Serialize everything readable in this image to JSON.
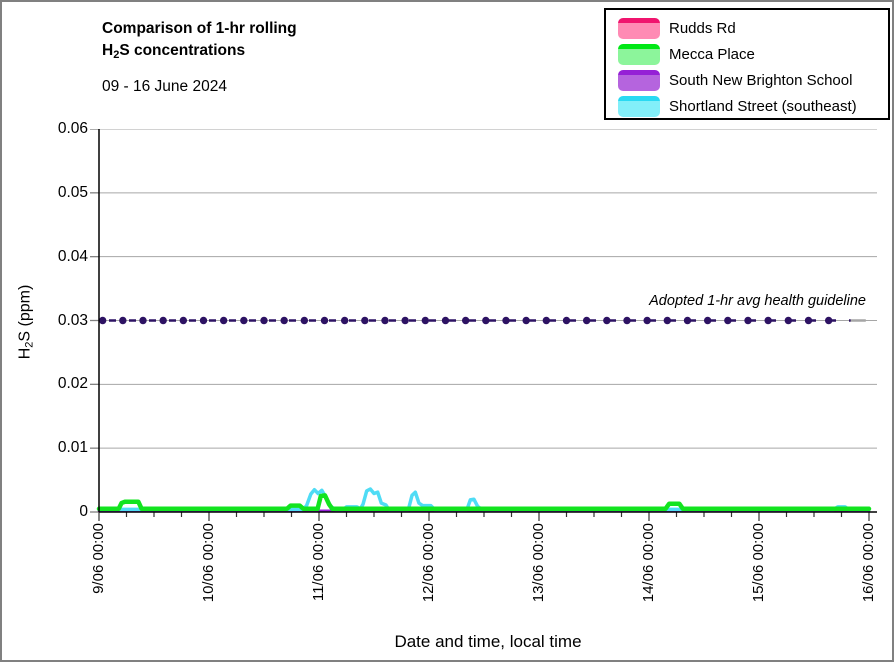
{
  "header": {
    "title_line1": "Comparison of 1-hr rolling",
    "title_h": "H",
    "title_sub": "2",
    "title_rest": "S concentrations",
    "subtitle": "09 - 16 June 2024"
  },
  "yaxis": {
    "h": "H",
    "sub": "2",
    "rest": "S (ppm)"
  },
  "legend": {
    "items": [
      {
        "label": "Rudds Rd",
        "line_color": "#F0146E",
        "fill_color": "#FF8AB4"
      },
      {
        "label": "Mecca Place",
        "line_color": "#00E816",
        "fill_color": "#8CF59B"
      },
      {
        "label": "South New Brighton School",
        "line_color": "#9520D6",
        "fill_color": "#B564DE"
      },
      {
        "label": "Shortland Street (southeast)",
        "line_color": "#29D9F2",
        "fill_color": "#82EFF9"
      }
    ]
  },
  "chart_data": {
    "type": "line",
    "title": "Comparison of 1-hr rolling H2S concentrations",
    "date_range": "09 - 16 June 2024",
    "xlabel": "Date and time, local time",
    "ylabel": "H2S (ppm)",
    "ylim": [
      0,
      0.06
    ],
    "yticks": [
      0,
      0.01,
      0.02,
      0.03,
      0.04,
      0.05,
      0.06
    ],
    "ytick_labels": [
      "0",
      "0.01",
      "0.02",
      "0.03",
      "0.04",
      "0.05",
      "0.06"
    ],
    "x_hours_range": [
      0,
      168
    ],
    "xtick_major_hours": [
      0,
      24,
      48,
      72,
      96,
      120,
      144,
      168
    ],
    "xtick_labels": [
      "9/06 00:00",
      "10/06 00:00",
      "11/06 00:00",
      "12/06 00:00",
      "13/06 00:00",
      "14/06 00:00",
      "15/06 00:00",
      "16/06 00:00"
    ],
    "xtick_minor_step_hours": 6,
    "grid_on": true,
    "grid_color": "#A6A6A6",
    "legend_position": "top-right",
    "guideline": {
      "label": "Adopted 1-hr avg health guideline",
      "value": 0.03,
      "color": "#2D1263",
      "tail_color": "#A6A6A6",
      "dash_end_hours": 164,
      "tail_end_hours": 167.3,
      "dot_start_hours": 0.8,
      "dot_step_hours": 4.4
    },
    "series": [
      {
        "name": "Rudds Rd",
        "color": "#F0146E",
        "width": 2.5,
        "points": [
          [
            0,
            0.0002
          ],
          [
            168,
            0.0002
          ]
        ]
      },
      {
        "name": "South New Brighton School",
        "color": "#9520D6",
        "width": 2.5,
        "points": [
          [
            0,
            0.0002
          ],
          [
            168,
            0.0002
          ]
        ]
      },
      {
        "name": "Shortland Street (southeast)",
        "color": "#4FDCF5",
        "width": 3.5,
        "points": [
          [
            0,
            0.0004
          ],
          [
            44.5,
            0.0004
          ],
          [
            45.3,
            0.001
          ],
          [
            46.2,
            0.0028
          ],
          [
            47,
            0.0035
          ],
          [
            47.8,
            0.0029
          ],
          [
            48.6,
            0.0034
          ],
          [
            49.6,
            0.0022
          ],
          [
            50.6,
            0.0009
          ],
          [
            51.5,
            0.0004
          ],
          [
            53.3,
            0.0004
          ],
          [
            54,
            0.0008
          ],
          [
            56.3,
            0.0008
          ],
          [
            57,
            0.0005
          ],
          [
            57.6,
            0.0012
          ],
          [
            58.4,
            0.0033
          ],
          [
            59.2,
            0.0036
          ],
          [
            60,
            0.0029
          ],
          [
            60.8,
            0.0031
          ],
          [
            61.6,
            0.0014
          ],
          [
            62.6,
            0.0011
          ],
          [
            63.2,
            0.0004
          ],
          [
            67.5,
            0.0004
          ],
          [
            68.3,
            0.0026
          ],
          [
            69,
            0.0031
          ],
          [
            69.8,
            0.0014
          ],
          [
            70.6,
            0.001
          ],
          [
            72.4,
            0.001
          ],
          [
            73.2,
            0.0004
          ],
          [
            80.3,
            0.0004
          ],
          [
            81,
            0.0019
          ],
          [
            81.8,
            0.002
          ],
          [
            82.6,
            0.0009
          ],
          [
            83.5,
            0.0004
          ],
          [
            160.3,
            0.0004
          ],
          [
            161.2,
            0.0008
          ],
          [
            162.8,
            0.0008
          ],
          [
            163.6,
            0.0004
          ],
          [
            168,
            0.0004
          ]
        ]
      },
      {
        "name": "Mecca Place",
        "color": "#12E41F",
        "width": 4.5,
        "points": [
          [
            0,
            0.0005
          ],
          [
            4.3,
            0.0005
          ],
          [
            4.9,
            0.0014
          ],
          [
            5.6,
            0.0016
          ],
          [
            8.6,
            0.0016
          ],
          [
            9.3,
            0.0005
          ],
          [
            41,
            0.0005
          ],
          [
            41.8,
            0.001
          ],
          [
            43.8,
            0.001
          ],
          [
            44.6,
            0.0005
          ],
          [
            47.7,
            0.0005
          ],
          [
            48.4,
            0.0025
          ],
          [
            49.3,
            0.0026
          ],
          [
            50.2,
            0.0012
          ],
          [
            50.9,
            0.0005
          ],
          [
            123.6,
            0.0005
          ],
          [
            124.4,
            0.0013
          ],
          [
            126.6,
            0.0013
          ],
          [
            127.4,
            0.0005
          ],
          [
            168,
            0.0005
          ]
        ]
      }
    ]
  }
}
